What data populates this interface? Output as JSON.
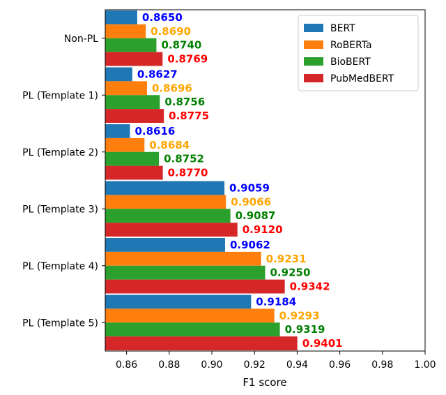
{
  "chart_data": {
    "type": "bar",
    "orientation": "horizontal",
    "title": "",
    "xlabel": "F1 score",
    "ylabel": "",
    "xlim": [
      0.85,
      1.0
    ],
    "xticks": [
      "0.86",
      "0.88",
      "0.90",
      "0.92",
      "0.94",
      "0.96",
      "0.98",
      "1.00"
    ],
    "categories": [
      "Non-PL",
      "PL (Template 1)",
      "PL (Template 2)",
      "PL (Template 3)",
      "PL (Template 4)",
      "PL (Template 5)"
    ],
    "legend_position": "top-right",
    "series": [
      {
        "name": "BERT",
        "color": "#1f77b4",
        "label_color": "#0000ff",
        "values": [
          0.865,
          0.8627,
          0.8616,
          0.9059,
          0.9062,
          0.9184
        ],
        "labels": [
          "0.8650",
          "0.8627",
          "0.8616",
          "0.9059",
          "0.9062",
          "0.9184"
        ]
      },
      {
        "name": "RoBERTa",
        "color": "#ff7f0e",
        "label_color": "#ffa500",
        "values": [
          0.869,
          0.8696,
          0.8684,
          0.9066,
          0.9231,
          0.9293
        ],
        "labels": [
          "0.8690",
          "0.8696",
          "0.8684",
          "0.9066",
          "0.9231",
          "0.9293"
        ]
      },
      {
        "name": "BioBERT",
        "color": "#2ca02c",
        "label_color": "#008000",
        "values": [
          0.874,
          0.8756,
          0.8752,
          0.9087,
          0.925,
          0.9319
        ],
        "labels": [
          "0.8740",
          "0.8756",
          "0.8752",
          "0.9087",
          "0.9250",
          "0.9319"
        ]
      },
      {
        "name": "PubMedBERT",
        "color": "#d62728",
        "label_color": "#ff0000",
        "values": [
          0.8769,
          0.8775,
          0.877,
          0.912,
          0.9342,
          0.9401
        ],
        "labels": [
          "0.8769",
          "0.8775",
          "0.8770",
          "0.9120",
          "0.9342",
          "0.9401"
        ]
      }
    ]
  }
}
